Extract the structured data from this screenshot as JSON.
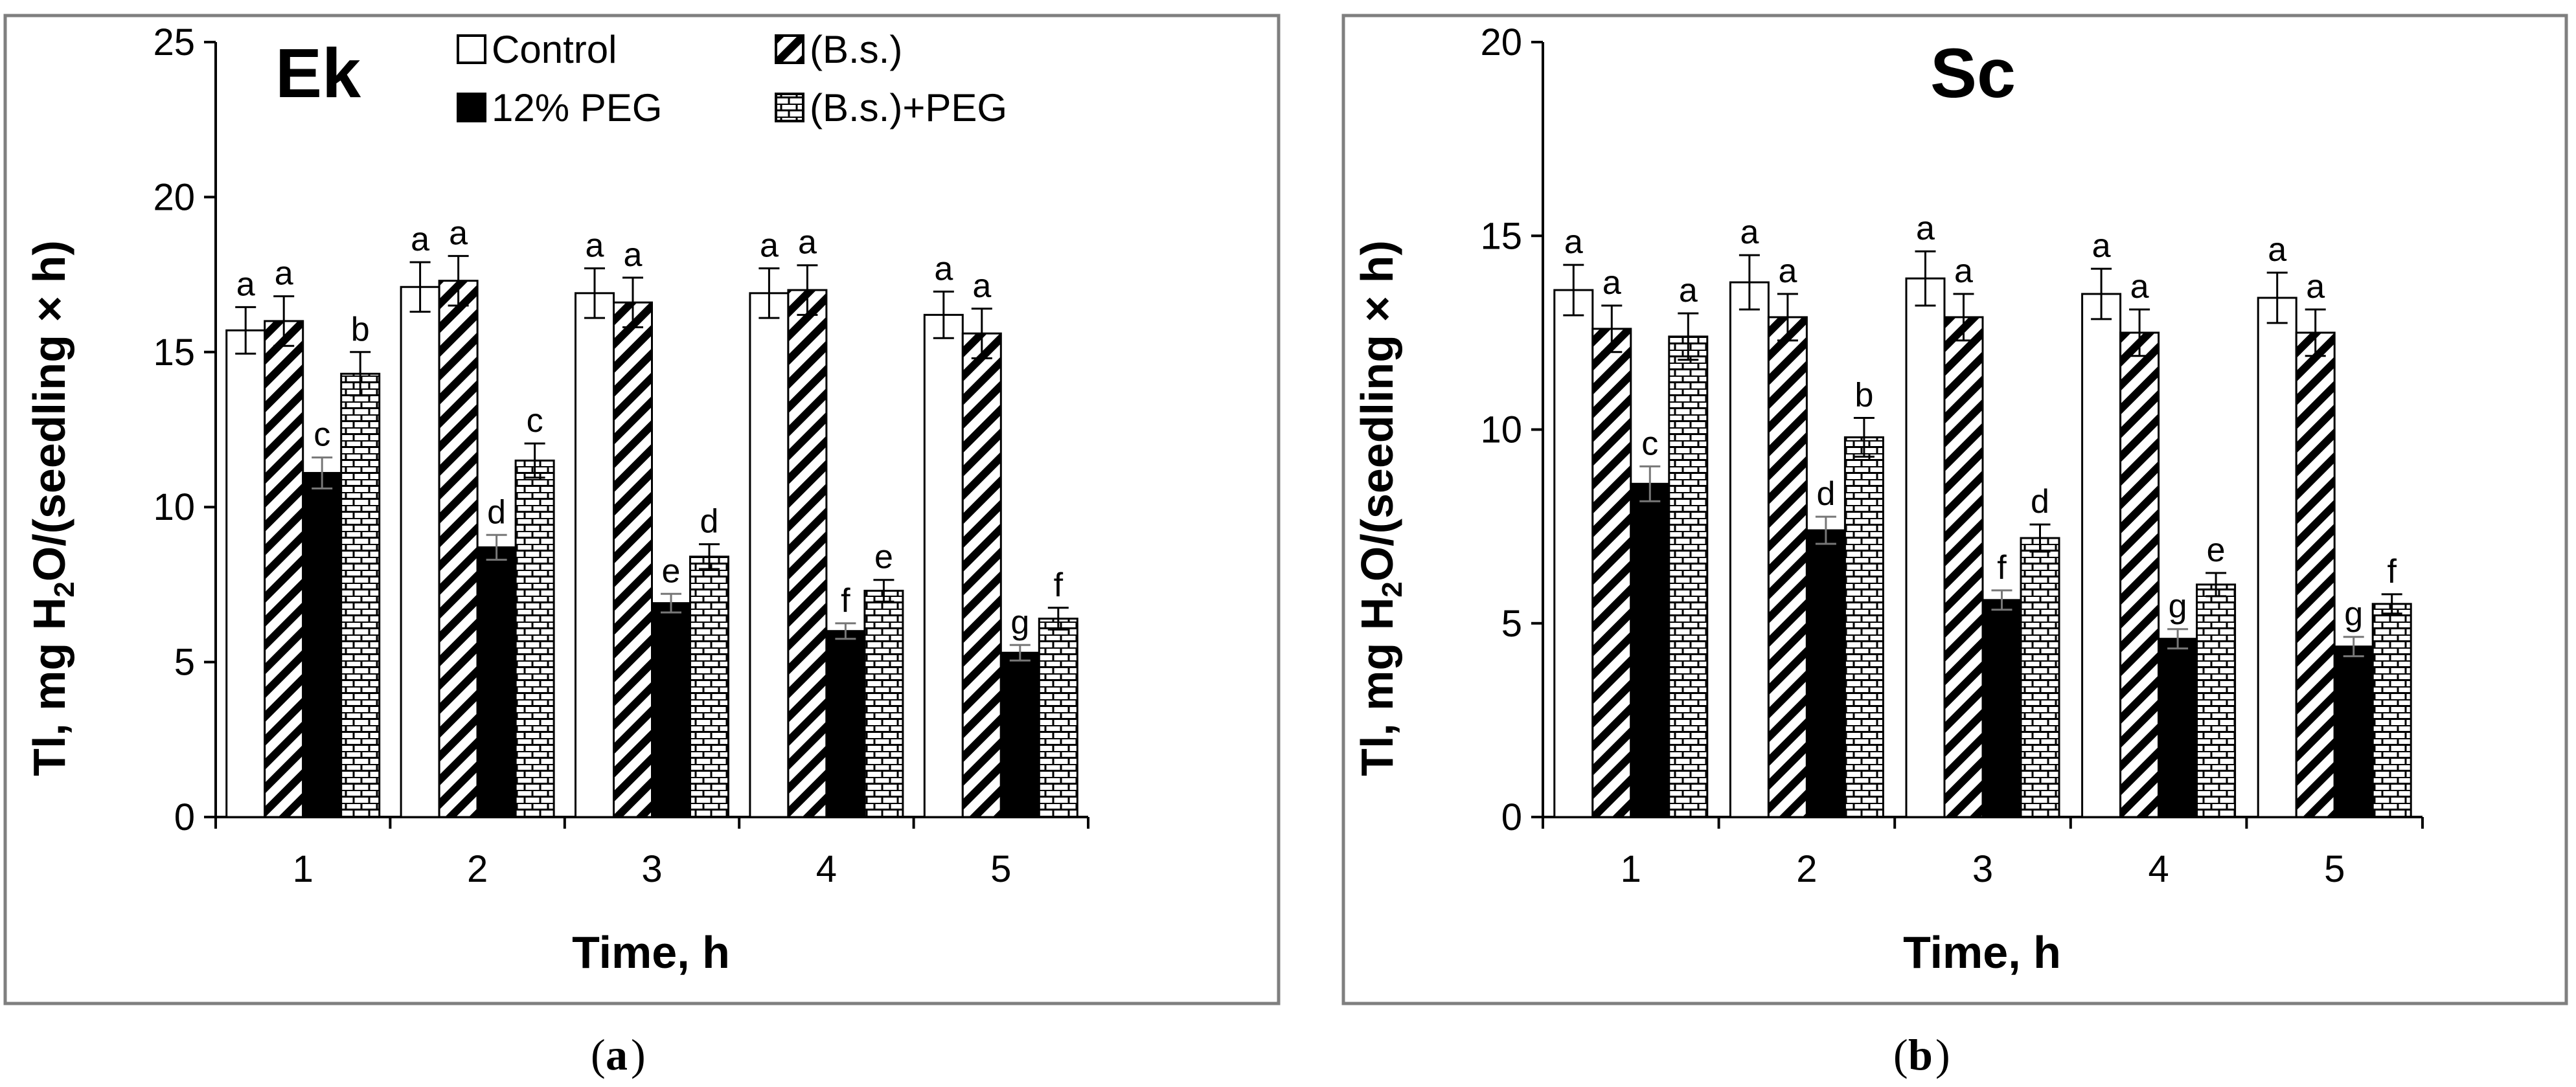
{
  "legend": {
    "series_names": [
      "Control",
      "(B.s.)",
      "12% PEG",
      "(B.s.)+PEG"
    ]
  },
  "captions": {
    "a": "a",
    "b": "b"
  },
  "chart_data": [
    {
      "type": "bar",
      "title": "Ek",
      "xlabel": "Time, h",
      "ylabel_pre": "Tl, mg H",
      "ylabel_sub": "2",
      "ylabel_post": "O/(seedling × h)",
      "categories": [
        "1",
        "2",
        "3",
        "4",
        "5"
      ],
      "ylim": [
        0,
        25
      ],
      "yticks": [
        0,
        5,
        10,
        15,
        20,
        25
      ],
      "grid": false,
      "legend_position": "top",
      "series": [
        {
          "name": "Control",
          "values": [
            15.7,
            17.1,
            16.9,
            16.9,
            16.2
          ],
          "errors": [
            0.75,
            0.8,
            0.8,
            0.8,
            0.75
          ],
          "labels": [
            "a",
            "a",
            "a",
            "a",
            "a"
          ]
        },
        {
          "name": "(B.s.)",
          "values": [
            16.0,
            17.3,
            16.6,
            17.0,
            15.6
          ],
          "errors": [
            0.8,
            0.8,
            0.8,
            0.8,
            0.8
          ],
          "labels": [
            "a",
            "a",
            "a",
            "a",
            "a"
          ]
        },
        {
          "name": "12% PEG",
          "values": [
            11.1,
            8.7,
            6.9,
            6.0,
            5.3
          ],
          "errors": [
            0.5,
            0.4,
            0.3,
            0.25,
            0.25
          ],
          "labels": [
            "c",
            "d",
            "e",
            "f",
            "g"
          ]
        },
        {
          "name": "(B.s.)+PEG",
          "values": [
            14.3,
            11.5,
            8.4,
            7.3,
            6.4
          ],
          "errors": [
            0.7,
            0.55,
            0.4,
            0.35,
            0.35
          ],
          "labels": [
            "b",
            "c",
            "d",
            "e",
            "f"
          ]
        }
      ]
    },
    {
      "type": "bar",
      "title": "Sc",
      "xlabel": "Time, h",
      "ylabel_pre": "Tl, mg H",
      "ylabel_sub": "2",
      "ylabel_post": "O/(seedling × h)",
      "categories": [
        "1",
        "2",
        "3",
        "4",
        "5"
      ],
      "ylim": [
        0,
        20
      ],
      "yticks": [
        0,
        5,
        10,
        15,
        20
      ],
      "grid": false,
      "legend_position": "none",
      "series": [
        {
          "name": "Control",
          "values": [
            13.6,
            13.8,
            13.9,
            13.5,
            13.4
          ],
          "errors": [
            0.65,
            0.7,
            0.7,
            0.65,
            0.65
          ],
          "labels": [
            "a",
            "a",
            "a",
            "a",
            "a"
          ]
        },
        {
          "name": "(B.s.)",
          "values": [
            12.6,
            12.9,
            12.9,
            12.5,
            12.5
          ],
          "errors": [
            0.6,
            0.6,
            0.6,
            0.6,
            0.6
          ],
          "labels": [
            "a",
            "a",
            "a",
            "a",
            "a"
          ]
        },
        {
          "name": "12% PEG",
          "values": [
            8.6,
            7.4,
            5.6,
            4.6,
            4.4
          ],
          "errors": [
            0.45,
            0.35,
            0.25,
            0.25,
            0.25
          ],
          "labels": [
            "c",
            "d",
            "f",
            "g",
            "g"
          ]
        },
        {
          "name": "(B.s.)+PEG",
          "values": [
            12.4,
            9.8,
            7.2,
            6.0,
            5.5
          ],
          "errors": [
            0.6,
            0.5,
            0.35,
            0.3,
            0.25
          ],
          "labels": [
            "a",
            "b",
            "d",
            "e",
            "f"
          ]
        }
      ]
    }
  ]
}
